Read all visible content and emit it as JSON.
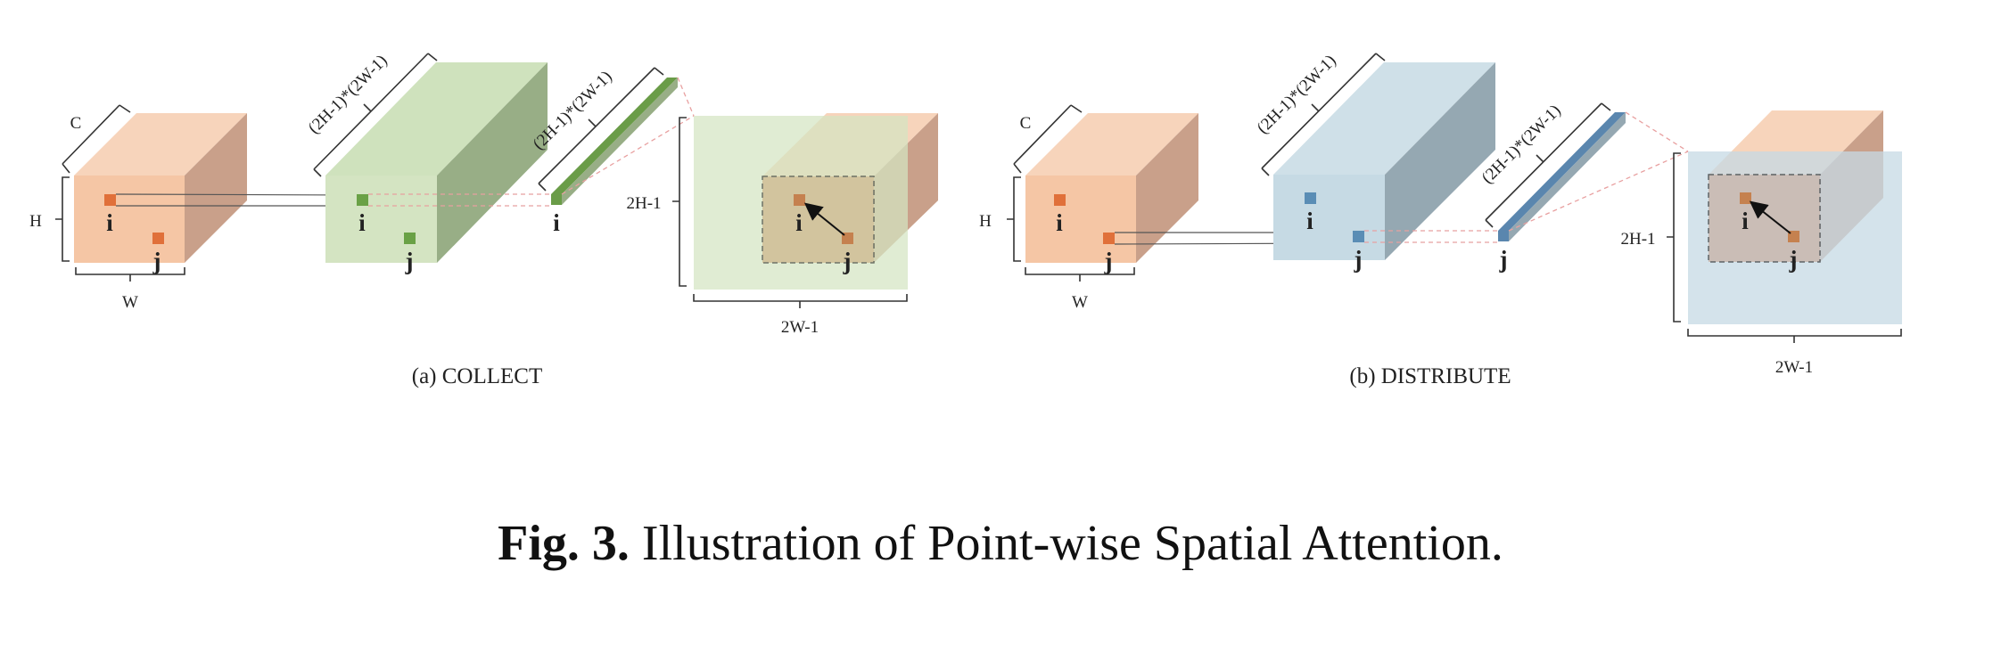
{
  "colors": {
    "orange_front": "#f5c6a5",
    "orange_top": "#f7d4bb",
    "orange_side": "#c9a08a",
    "orange_dot": "#e0703a",
    "green_front": "#d4e4c2",
    "green_top": "#cfe2bd",
    "green_side": "#98ae86",
    "green_dot": "#6aa146",
    "green_bar": "#6a9c48",
    "blue_front": "#c6dae4",
    "blue_top": "#cfe0e8",
    "blue_side": "#95a8b2",
    "blue_dot": "#5a8db5",
    "blue_bar": "#5a86ae",
    "brown_dot": "#c5814f",
    "dashed_link": "#e8a0a0"
  },
  "collect": {
    "caption": "(a) COLLECT",
    "input": {
      "c_label": "C",
      "h_label": "H",
      "w_label": "W",
      "i": "i",
      "j": "j"
    },
    "volume": {
      "depth_label": "(2H-1)*(2W-1)",
      "i": "i",
      "j": "j"
    },
    "vector": {
      "depth_label": "(2H-1)*(2W-1)",
      "i": "i"
    },
    "map": {
      "h_label": "2H-1",
      "w_label": "2W-1",
      "i": "i",
      "j": "j"
    }
  },
  "distribute": {
    "caption": "(b) DISTRIBUTE",
    "input": {
      "c_label": "C",
      "h_label": "H",
      "w_label": "W",
      "i": "i",
      "j": "j"
    },
    "volume": {
      "depth_label": "(2H-1)*(2W-1)",
      "i": "i",
      "j": "j"
    },
    "vector": {
      "depth_label": "(2H-1)*(2W-1)",
      "j": "j"
    },
    "map": {
      "h_label": "2H-1",
      "w_label": "2W-1",
      "i": "i",
      "j": "j"
    }
  },
  "figure_caption": {
    "label": "Fig. 3.",
    "text": "Illustration of Point-wise Spatial Attention."
  }
}
